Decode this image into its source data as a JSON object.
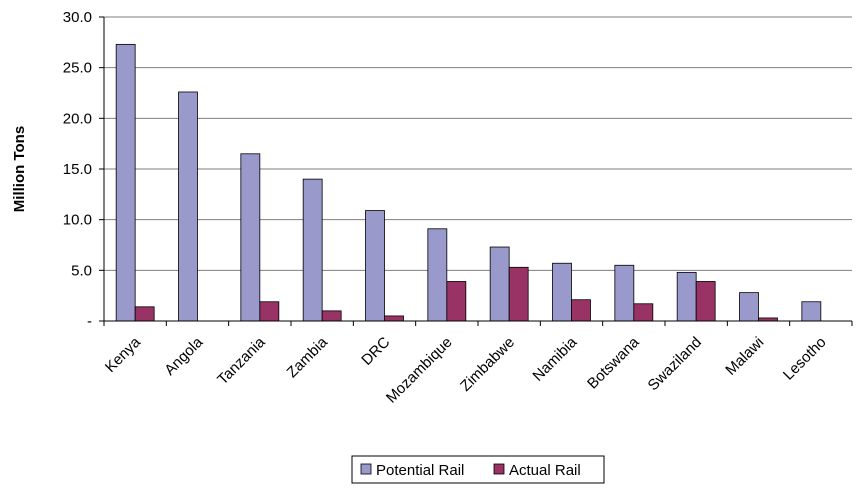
{
  "chart_data": {
    "type": "bar",
    "ylabel": "Million Tons",
    "ylim": [
      0,
      30
    ],
    "yticks": [
      {
        "value": 0,
        "label": "-"
      },
      {
        "value": 5,
        "label": "5.0"
      },
      {
        "value": 10,
        "label": "10.0"
      },
      {
        "value": 15,
        "label": "15.0"
      },
      {
        "value": 20,
        "label": "20.0"
      },
      {
        "value": 25,
        "label": "25.0"
      },
      {
        "value": 30,
        "label": "30.0"
      }
    ],
    "grid": true,
    "legend_position": "bottom",
    "categories": [
      "Kenya",
      "Angola",
      "Tanzania",
      "Zambia",
      "DRC",
      "Mozambique",
      "Zimbabwe",
      "Namibia",
      "Botswana",
      "Swaziland",
      "Malawi",
      "Lesotho"
    ],
    "series": [
      {
        "name": "Potential Rail",
        "color": "#9999cc",
        "values": [
          27.3,
          22.6,
          16.5,
          14.0,
          10.9,
          9.1,
          7.3,
          5.7,
          5.5,
          4.8,
          2.8,
          1.9
        ]
      },
      {
        "name": "Actual Rail",
        "color": "#993366",
        "values": [
          1.4,
          0,
          1.9,
          1.0,
          0.5,
          3.9,
          5.3,
          2.1,
          1.7,
          3.9,
          0.3,
          0
        ]
      }
    ]
  }
}
